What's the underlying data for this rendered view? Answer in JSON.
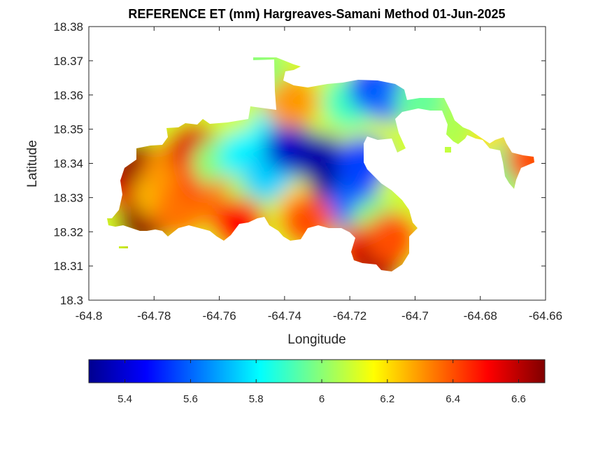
{
  "chart_data": {
    "type": "heatmap",
    "title": "REFERENCE ET (mm) Hargreaves-Samani Method  01-Jun-2025",
    "xlabel": "Longitude",
    "ylabel": "Latitude",
    "xlim": [
      -64.8,
      -64.66
    ],
    "ylim": [
      18.3,
      18.38
    ],
    "xticks": [
      -64.8,
      -64.78,
      -64.76,
      -64.74,
      -64.72,
      -64.7,
      -64.68,
      -64.66
    ],
    "xtick_labels": [
      "-64.8",
      "-64.78",
      "-64.76",
      "-64.74",
      "-64.72",
      "-64.7",
      "-64.68",
      "-64.66"
    ],
    "yticks": [
      18.3,
      18.31,
      18.32,
      18.33,
      18.34,
      18.35,
      18.36,
      18.37,
      18.38
    ],
    "ytick_labels": [
      "18.3",
      "18.31",
      "18.32",
      "18.33",
      "18.34",
      "18.35",
      "18.36",
      "18.37",
      "18.38"
    ],
    "colormap": "jet",
    "colorbar": {
      "location": "bottom",
      "clim": [
        5.29,
        6.68
      ],
      "ticks": [
        5.4,
        5.6,
        5.8,
        6,
        6.2,
        6.4,
        6.6
      ],
      "tick_labels": [
        "5.4",
        "5.6",
        "5.8",
        "6",
        "6.2",
        "6.4",
        "6.6"
      ]
    },
    "grid": false,
    "regions": [
      {
        "lon": -64.79,
        "lat": 18.335,
        "value": 6.52
      },
      {
        "lon": -64.785,
        "lat": 18.339,
        "value": 6.65
      },
      {
        "lon": -64.783,
        "lat": 18.323,
        "value": 6.66
      },
      {
        "lon": -64.778,
        "lat": 18.331,
        "value": 6.25
      },
      {
        "lon": -64.775,
        "lat": 18.338,
        "value": 6.3
      },
      {
        "lon": -64.772,
        "lat": 18.326,
        "value": 6.35
      },
      {
        "lon": -64.768,
        "lat": 18.344,
        "value": 6.55
      },
      {
        "lon": -64.765,
        "lat": 18.336,
        "value": 6.42
      },
      {
        "lon": -64.76,
        "lat": 18.34,
        "value": 6.0
      },
      {
        "lon": -64.758,
        "lat": 18.328,
        "value": 6.35
      },
      {
        "lon": -64.752,
        "lat": 18.342,
        "value": 5.8
      },
      {
        "lon": -64.75,
        "lat": 18.331,
        "value": 6.05
      },
      {
        "lon": -64.745,
        "lat": 18.337,
        "value": 5.75
      },
      {
        "lon": -64.742,
        "lat": 18.35,
        "value": 5.8
      },
      {
        "lon": -64.738,
        "lat": 18.345,
        "value": 5.4
      },
      {
        "lon": -64.735,
        "lat": 18.326,
        "value": 6.2
      },
      {
        "lon": -64.73,
        "lat": 18.342,
        "value": 5.35
      },
      {
        "lon": -64.728,
        "lat": 18.356,
        "value": 6.1
      },
      {
        "lon": -64.724,
        "lat": 18.334,
        "value": 5.32
      },
      {
        "lon": -64.72,
        "lat": 18.358,
        "value": 5.9
      },
      {
        "lon": -64.719,
        "lat": 18.328,
        "value": 5.6
      },
      {
        "lon": -64.716,
        "lat": 18.34,
        "value": 5.55
      },
      {
        "lon": -64.712,
        "lat": 18.362,
        "value": 5.5
      },
      {
        "lon": -64.712,
        "lat": 18.322,
        "value": 6.0
      },
      {
        "lon": -64.708,
        "lat": 18.36,
        "value": 5.6
      },
      {
        "lon": -64.717,
        "lat": 18.314,
        "value": 6.45
      },
      {
        "lon": -64.711,
        "lat": 18.312,
        "value": 6.62
      },
      {
        "lon": -64.707,
        "lat": 18.318,
        "value": 6.4
      },
      {
        "lon": -64.754,
        "lat": 18.322,
        "value": 6.5
      },
      {
        "lon": -64.733,
        "lat": 18.323,
        "value": 6.4
      },
      {
        "lon": -64.738,
        "lat": 18.358,
        "value": 6.3
      },
      {
        "lon": -64.748,
        "lat": 18.368,
        "value": 6.0
      },
      {
        "lon": -64.698,
        "lat": 18.358,
        "value": 5.95
      },
      {
        "lon": -64.686,
        "lat": 18.35,
        "value": 6.05
      },
      {
        "lon": -64.675,
        "lat": 18.346,
        "value": 6.2
      },
      {
        "lon": -64.67,
        "lat": 18.339,
        "value": 5.95
      },
      {
        "lon": -64.664,
        "lat": 18.341,
        "value": 6.4
      }
    ]
  }
}
